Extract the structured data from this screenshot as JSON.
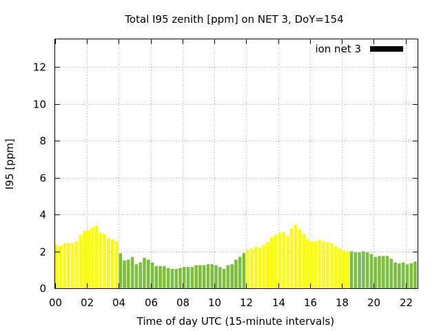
{
  "chart_data": {
    "type": "bar",
    "title": "Total I95 zenith [ppm] on NET 3, DoY=154",
    "xlabel": "Time of day UTC (15-minute intervals)",
    "ylabel": "I95 [ppm]",
    "xlim": [
      0,
      22.75
    ],
    "ylim": [
      0,
      13.5
    ],
    "grid": true,
    "legend_position": "top-right",
    "x_ticks": [
      "00",
      "02",
      "04",
      "06",
      "08",
      "10",
      "12",
      "14",
      "16",
      "18",
      "20",
      "22"
    ],
    "y_ticks": [
      "0",
      "2",
      "4",
      "6",
      "8",
      "10",
      "12"
    ],
    "series": [
      {
        "name": "ion net 3",
        "color": "#000000",
        "bar_colors": {
          "day": "#ffff00",
          "night": "#7cbf3f"
        },
        "x": [
          0,
          0.25,
          0.5,
          0.75,
          1,
          1.25,
          1.5,
          1.75,
          2,
          2.25,
          2.5,
          2.75,
          3,
          3.25,
          3.5,
          3.75,
          4,
          4.25,
          4.5,
          4.75,
          5,
          5.25,
          5.5,
          5.75,
          6,
          6.25,
          6.5,
          6.75,
          7,
          7.25,
          7.5,
          7.75,
          8,
          8.25,
          8.5,
          8.75,
          9,
          9.25,
          9.5,
          9.75,
          10,
          10.25,
          10.5,
          10.75,
          11,
          11.25,
          11.5,
          11.75,
          12,
          12.25,
          12.5,
          12.75,
          13,
          13.25,
          13.5,
          13.75,
          14,
          14.25,
          14.5,
          14.75,
          15,
          15.25,
          15.5,
          15.75,
          16,
          16.25,
          16.5,
          16.75,
          17,
          17.25,
          17.5,
          17.75,
          18,
          18.25,
          18.5,
          18.75,
          19,
          19.25,
          19.5,
          19.75,
          20,
          20.25,
          20.5,
          20.75,
          21,
          21.25,
          21.5,
          21.75,
          22,
          22.25,
          22.5,
          22.75
        ],
        "values": [
          2.35,
          2.3,
          2.45,
          2.45,
          2.45,
          2.55,
          2.9,
          3.1,
          3.15,
          3.3,
          3.4,
          3.0,
          2.95,
          2.7,
          2.65,
          2.55,
          1.9,
          1.5,
          1.55,
          1.7,
          1.3,
          1.4,
          1.65,
          1.55,
          1.4,
          1.2,
          1.2,
          1.2,
          1.1,
          1.05,
          1.05,
          1.1,
          1.15,
          1.15,
          1.15,
          1.25,
          1.25,
          1.25,
          1.3,
          1.3,
          1.25,
          1.15,
          1.05,
          1.25,
          1.3,
          1.55,
          1.7,
          1.9,
          2.1,
          2.15,
          2.25,
          2.2,
          2.35,
          2.5,
          2.75,
          2.9,
          3.0,
          3.05,
          2.85,
          3.25,
          3.45,
          3.2,
          2.95,
          2.65,
          2.55,
          2.55,
          2.6,
          2.55,
          2.5,
          2.45,
          2.3,
          2.15,
          2.05,
          2.0,
          2.0,
          1.95,
          1.95,
          2.0,
          1.95,
          1.85,
          1.7,
          1.75,
          1.75,
          1.75,
          1.6,
          1.4,
          1.35,
          1.4,
          1.3,
          1.35,
          1.45,
          1.5
        ],
        "time_of_day": [
          "day",
          "day",
          "day",
          "day",
          "day",
          "day",
          "day",
          "day",
          "day",
          "day",
          "day",
          "day",
          "day",
          "day",
          "day",
          "day",
          "night",
          "night",
          "night",
          "night",
          "night",
          "night",
          "night",
          "night",
          "night",
          "night",
          "night",
          "night",
          "night",
          "night",
          "night",
          "night",
          "night",
          "night",
          "night",
          "night",
          "night",
          "night",
          "night",
          "night",
          "night",
          "night",
          "night",
          "night",
          "night",
          "night",
          "night",
          "night",
          "day",
          "day",
          "day",
          "day",
          "day",
          "day",
          "day",
          "day",
          "day",
          "day",
          "day",
          "day",
          "day",
          "day",
          "day",
          "day",
          "day",
          "day",
          "day",
          "day",
          "day",
          "day",
          "day",
          "day",
          "day",
          "day",
          "night",
          "night",
          "night",
          "night",
          "night",
          "night",
          "night",
          "night",
          "night",
          "night",
          "night",
          "night",
          "night",
          "night",
          "night",
          "night",
          "night",
          "night"
        ]
      }
    ]
  }
}
